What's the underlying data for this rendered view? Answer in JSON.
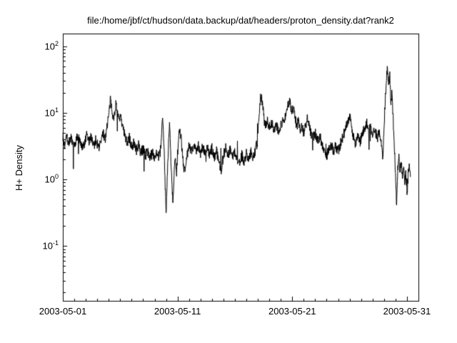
{
  "chart_data": {
    "type": "line",
    "title": "file:/home/jbf/ct/hudson/data.backup/dat/headers/proton_density.dat?rank2",
    "ylabel": "H+ Density",
    "xlabel": "",
    "colors": {
      "line": "#000000",
      "background": "#ffffff",
      "frame": "#000000"
    },
    "legend": "none",
    "grid": false,
    "x_axis": {
      "unit": "days since 2003-05-01",
      "min_day": 0,
      "max_day": 31,
      "major_tick_days": [
        0,
        10,
        20,
        30
      ],
      "tick_labels": [
        "2003-05-01",
        "2003-05-11",
        "2003-05-21",
        "2003-05-31"
      ],
      "minor_tick_interval_days": 1
    },
    "y_axis": {
      "scale": "log",
      "min": 0.015,
      "max": 155,
      "tick_base": "10",
      "tick_exponents": [
        2,
        1,
        0,
        -1
      ],
      "minor_ticks": "log-decade 2-9"
    },
    "series": [
      {
        "name": "H+ Density",
        "color": "#000000",
        "noise_log_amplitude": 0.08,
        "noise_spike_probability": 0.012,
        "noise_spike_log_amplitude": 0.3,
        "noise_seed": 7,
        "points_per_day": 48,
        "control_points": [
          [
            0.0,
            4.5
          ],
          [
            0.15,
            3.2
          ],
          [
            0.3,
            4.8
          ],
          [
            0.5,
            3.5
          ],
          [
            0.7,
            4.2
          ],
          [
            0.9,
            3.0
          ],
          [
            1.1,
            3.6
          ],
          [
            1.3,
            4.5
          ],
          [
            1.5,
            3.8
          ],
          [
            1.7,
            2.8
          ],
          [
            1.9,
            3.4
          ],
          [
            2.1,
            4.6
          ],
          [
            2.3,
            3.6
          ],
          [
            2.5,
            4.4
          ],
          [
            2.7,
            3.2
          ],
          [
            2.9,
            4.0
          ],
          [
            3.1,
            3.0
          ],
          [
            3.3,
            3.5
          ],
          [
            3.5,
            5.0
          ],
          [
            3.7,
            4.0
          ],
          [
            3.85,
            6.5
          ],
          [
            4.0,
            9.0
          ],
          [
            4.15,
            15.5
          ],
          [
            4.3,
            11.0
          ],
          [
            4.45,
            8.0
          ],
          [
            4.6,
            13.5
          ],
          [
            4.75,
            11.0
          ],
          [
            4.9,
            7.0
          ],
          [
            5.05,
            9.5
          ],
          [
            5.2,
            6.0
          ],
          [
            5.4,
            4.5
          ],
          [
            5.6,
            3.5
          ],
          [
            5.8,
            4.2
          ],
          [
            6.0,
            3.0
          ],
          [
            6.2,
            3.6
          ],
          [
            6.4,
            2.7
          ],
          [
            6.6,
            3.2
          ],
          [
            6.8,
            2.5
          ],
          [
            7.0,
            2.9
          ],
          [
            7.2,
            2.3
          ],
          [
            7.4,
            2.7
          ],
          [
            7.6,
            2.1
          ],
          [
            7.8,
            2.5
          ],
          [
            8.0,
            2.2
          ],
          [
            8.2,
            2.6
          ],
          [
            8.4,
            2.1
          ],
          [
            8.55,
            3.0
          ],
          [
            8.7,
            8.5
          ],
          [
            8.8,
            4.0
          ],
          [
            8.9,
            1.0
          ],
          [
            9.0,
            0.32
          ],
          [
            9.1,
            1.1
          ],
          [
            9.2,
            3.0
          ],
          [
            9.3,
            7.0
          ],
          [
            9.4,
            2.5
          ],
          [
            9.5,
            0.9
          ],
          [
            9.6,
            0.42
          ],
          [
            9.7,
            1.3
          ],
          [
            9.8,
            2.2
          ],
          [
            9.9,
            1.1
          ],
          [
            10.0,
            2.4
          ],
          [
            10.15,
            5.5
          ],
          [
            10.3,
            4.5
          ],
          [
            10.45,
            2.0
          ],
          [
            10.6,
            1.3
          ],
          [
            10.8,
            2.2
          ],
          [
            11.0,
            3.2
          ],
          [
            11.2,
            2.6
          ],
          [
            11.4,
            3.4
          ],
          [
            11.6,
            2.7
          ],
          [
            11.8,
            3.3
          ],
          [
            12.0,
            2.5
          ],
          [
            12.2,
            3.1
          ],
          [
            12.4,
            2.4
          ],
          [
            12.6,
            3.0
          ],
          [
            12.8,
            2.3
          ],
          [
            13.0,
            2.9
          ],
          [
            13.2,
            2.2
          ],
          [
            13.4,
            2.7
          ],
          [
            13.6,
            1.9
          ],
          [
            13.8,
            1.4
          ],
          [
            14.0,
            2.3
          ],
          [
            14.2,
            2.9
          ],
          [
            14.4,
            2.3
          ],
          [
            14.6,
            2.8
          ],
          [
            14.8,
            2.2
          ],
          [
            15.0,
            2.6
          ],
          [
            15.2,
            2.0
          ],
          [
            15.4,
            1.7
          ],
          [
            15.6,
            2.3
          ],
          [
            15.8,
            1.9
          ],
          [
            16.0,
            2.4
          ],
          [
            16.2,
            2.1
          ],
          [
            16.4,
            2.6
          ],
          [
            16.6,
            2.2
          ],
          [
            16.8,
            2.8
          ],
          [
            16.95,
            3.5
          ],
          [
            17.1,
            8.0
          ],
          [
            17.25,
            20.0
          ],
          [
            17.4,
            14.0
          ],
          [
            17.55,
            8.5
          ],
          [
            17.7,
            6.5
          ],
          [
            17.85,
            7.5
          ],
          [
            18.0,
            6.0
          ],
          [
            18.2,
            7.0
          ],
          [
            18.4,
            5.8
          ],
          [
            18.6,
            6.8
          ],
          [
            18.8,
            5.5
          ],
          [
            19.0,
            6.5
          ],
          [
            19.2,
            7.5
          ],
          [
            19.4,
            9.0
          ],
          [
            19.6,
            12.5
          ],
          [
            19.8,
            15.0
          ],
          [
            19.95,
            10.0
          ],
          [
            20.1,
            12.0
          ],
          [
            20.25,
            8.0
          ],
          [
            20.4,
            6.5
          ],
          [
            20.55,
            7.5
          ],
          [
            20.7,
            5.5
          ],
          [
            20.85,
            6.5
          ],
          [
            21.0,
            5.0
          ],
          [
            21.15,
            6.0
          ],
          [
            21.3,
            8.5
          ],
          [
            21.45,
            7.0
          ],
          [
            21.6,
            5.0
          ],
          [
            21.8,
            4.2
          ],
          [
            22.0,
            5.0
          ],
          [
            22.2,
            3.8
          ],
          [
            22.4,
            4.5
          ],
          [
            22.6,
            3.4
          ],
          [
            22.8,
            2.8
          ],
          [
            23.0,
            2.3
          ],
          [
            23.2,
            2.8
          ],
          [
            23.4,
            3.4
          ],
          [
            23.6,
            2.7
          ],
          [
            23.8,
            3.2
          ],
          [
            24.0,
            2.6
          ],
          [
            24.2,
            3.4
          ],
          [
            24.4,
            4.2
          ],
          [
            24.6,
            5.5
          ],
          [
            24.8,
            7.0
          ],
          [
            25.0,
            9.5
          ],
          [
            25.15,
            6.5
          ],
          [
            25.3,
            4.5
          ],
          [
            25.5,
            3.5
          ],
          [
            25.7,
            4.5
          ],
          [
            25.9,
            3.6
          ],
          [
            26.1,
            4.8
          ],
          [
            26.3,
            5.8
          ],
          [
            26.5,
            7.0
          ],
          [
            26.65,
            5.0
          ],
          [
            26.8,
            6.0
          ],
          [
            27.0,
            4.5
          ],
          [
            27.2,
            5.5
          ],
          [
            27.4,
            4.2
          ],
          [
            27.6,
            5.2
          ],
          [
            27.75,
            3.5
          ],
          [
            27.9,
            2.0
          ],
          [
            28.0,
            6.0
          ],
          [
            28.1,
            15.0
          ],
          [
            28.2,
            30.0
          ],
          [
            28.3,
            48.0
          ],
          [
            28.4,
            25.0
          ],
          [
            28.5,
            35.0
          ],
          [
            28.6,
            15.0
          ],
          [
            28.7,
            20.0
          ],
          [
            28.8,
            8.0
          ],
          [
            28.9,
            3.0
          ],
          [
            29.0,
            1.2
          ],
          [
            29.1,
            0.4
          ],
          [
            29.2,
            1.5
          ],
          [
            29.3,
            2.2
          ],
          [
            29.4,
            1.4
          ],
          [
            29.5,
            1.8
          ],
          [
            29.6,
            1.1
          ],
          [
            29.7,
            1.6
          ],
          [
            29.8,
            0.9
          ],
          [
            29.9,
            1.4
          ],
          [
            30.0,
            0.55
          ],
          [
            30.1,
            1.2
          ],
          [
            30.2,
            1.5
          ],
          [
            30.3,
            1.1
          ]
        ]
      }
    ]
  }
}
